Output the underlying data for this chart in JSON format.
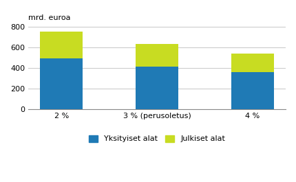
{
  "categories": [
    "2 %",
    "3 % (perusoletus)",
    "4 %"
  ],
  "yksityiset": [
    495,
    415,
    355
  ],
  "julkiset": [
    255,
    220,
    185
  ],
  "color_yksityiset": "#1f7ab5",
  "color_julkiset": "#c8dc22",
  "ylabel": "mrd. euroa",
  "ylim": [
    0,
    850
  ],
  "yticks": [
    0,
    200,
    400,
    600,
    800
  ],
  "legend_labels": [
    "Yksityiset alat",
    "Julkiset alat"
  ],
  "bar_width": 0.45,
  "background_color": "#ffffff",
  "grid_color": "#cccccc"
}
